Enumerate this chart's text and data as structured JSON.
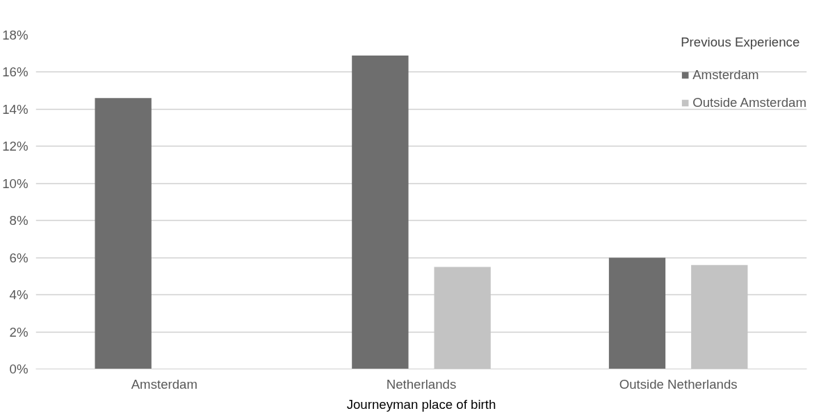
{
  "chart_data": {
    "type": "bar",
    "xlabel": "Journeyman place of birth",
    "legend_title": "Previous Experience",
    "categories": [
      "Amsterdam",
      "Netherlands",
      "Outside Netherlands"
    ],
    "series": [
      {
        "name": "Amsterdam",
        "color": "#6e6e6e",
        "values": [
          14.6,
          16.9,
          6.0
        ]
      },
      {
        "name": "Outside Amsterdam",
        "color": "#c3c3c3",
        "values": [
          null,
          5.5,
          5.6
        ]
      }
    ],
    "ylim": [
      0,
      18
    ],
    "yticks": [
      {
        "value": 0,
        "label": "0%"
      },
      {
        "value": 2,
        "label": "2%"
      },
      {
        "value": 4,
        "label": "4%"
      },
      {
        "value": 6,
        "label": "6%"
      },
      {
        "value": 8,
        "label": "8%"
      },
      {
        "value": 10,
        "label": "10%"
      },
      {
        "value": 12,
        "label": "12%"
      },
      {
        "value": 14,
        "label": "14%"
      },
      {
        "value": 16,
        "label": "16%"
      },
      {
        "value": 18,
        "label": "18%"
      }
    ],
    "grid": "y",
    "legend": "top right"
  }
}
